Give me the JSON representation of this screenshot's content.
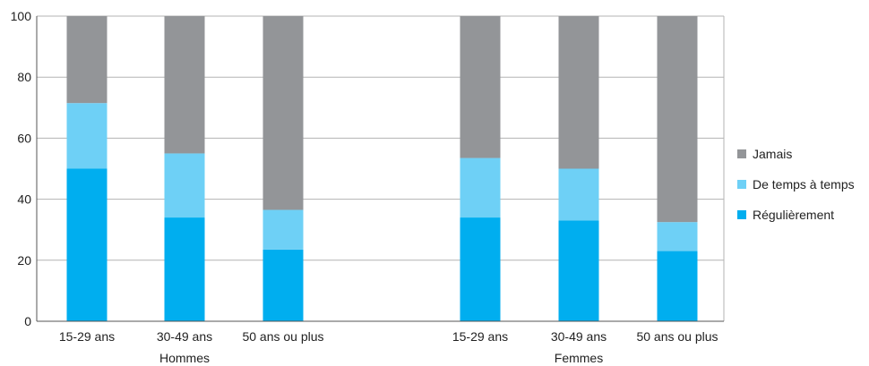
{
  "chart_data": {
    "type": "bar",
    "stacked": true,
    "ylim": [
      0,
      100
    ],
    "yticks": [
      0,
      20,
      40,
      60,
      80,
      100
    ],
    "grid": true,
    "legend_position": "right",
    "groups": [
      {
        "label": "Hommes",
        "categories": [
          "15-29 ans",
          "30-49 ans",
          "50 ans ou plus"
        ]
      },
      {
        "label": "Femmes",
        "categories": [
          "15-29 ans",
          "30-49 ans",
          "50 ans ou plus"
        ]
      }
    ],
    "series": [
      {
        "name": "Régulièrement",
        "color": "#00aeef",
        "values": [
          50,
          34,
          23.5,
          34,
          33,
          23
        ]
      },
      {
        "name": "De temps à temps",
        "color": "#6ed0f6",
        "values": [
          21.5,
          21,
          13,
          19.5,
          17,
          9.5
        ]
      },
      {
        "name": "Jamais",
        "color": "#939598",
        "values": [
          28.5,
          45,
          63.5,
          46.5,
          50,
          67.5
        ]
      }
    ],
    "legend_order": [
      "Jamais",
      "De temps à temps",
      "Régulièrement"
    ]
  }
}
